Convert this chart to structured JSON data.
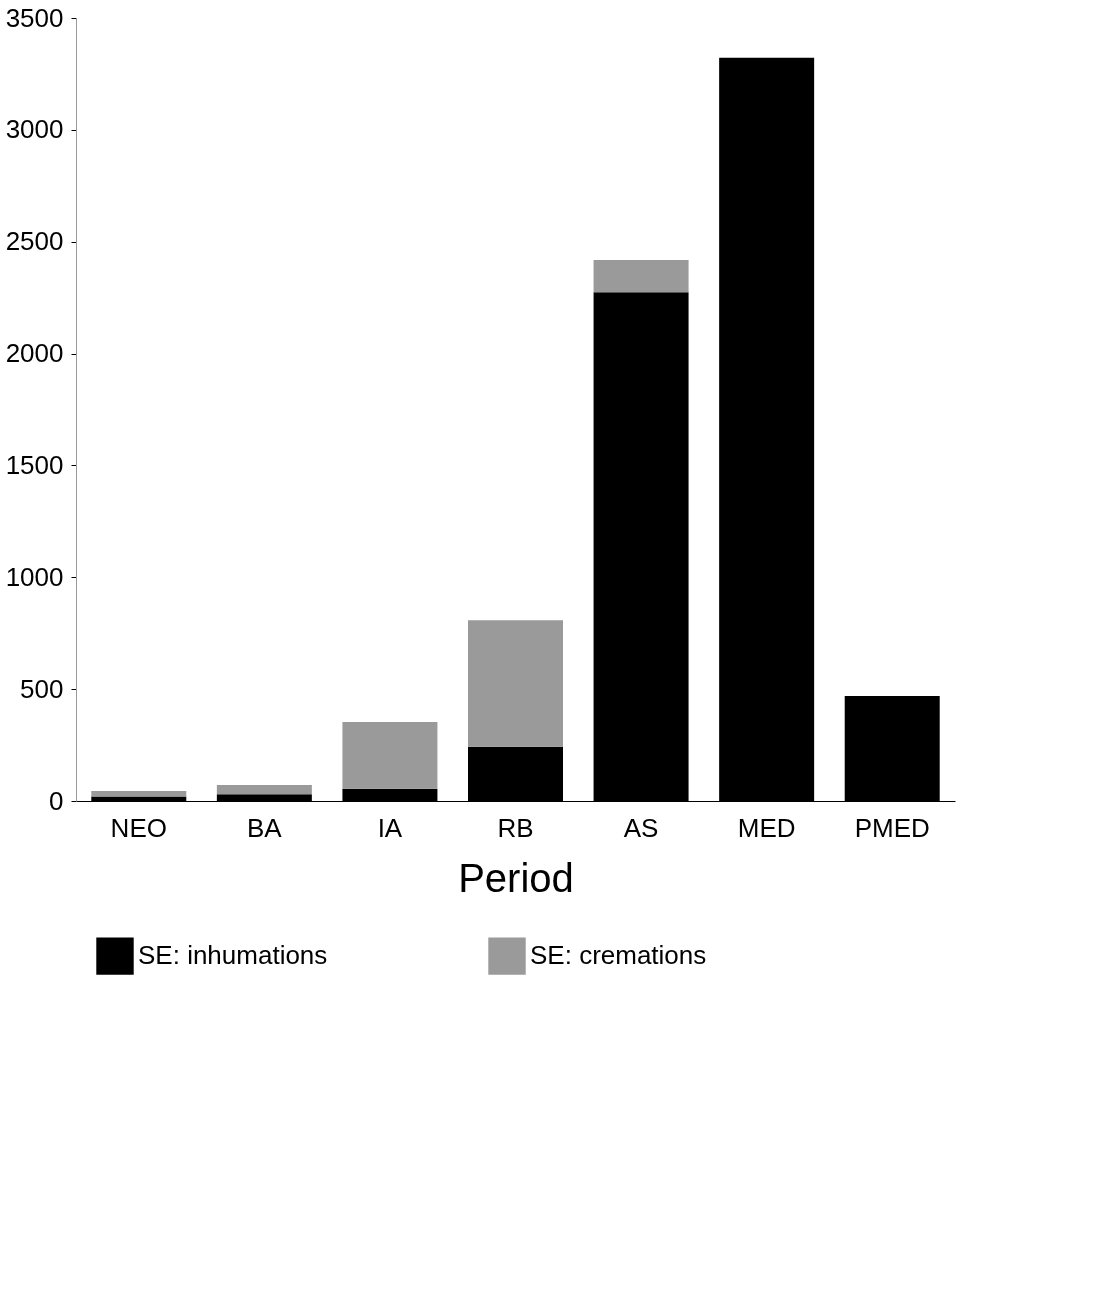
{
  "chart_data": {
    "type": "bar",
    "stacked": true,
    "xlabel": "Period",
    "categories": [
      "NEO",
      "BA",
      "IA",
      "RB",
      "AS",
      "MED",
      "PMED"
    ],
    "series": [
      {
        "name": "SE: inhumations",
        "color": "#000000",
        "values": [
          20,
          30,
          55,
          243,
          2274,
          3322,
          469
        ]
      },
      {
        "name": "SE: cremations",
        "color": "#9a9a9a",
        "values": [
          25,
          42,
          298,
          565,
          144,
          0,
          0
        ]
      }
    ],
    "ylim": [
      0,
      3500
    ],
    "yticks": [
      0,
      500,
      1000,
      1500,
      2000,
      2500,
      3000,
      3500
    ],
    "grid": false,
    "legend": "bottom"
  }
}
